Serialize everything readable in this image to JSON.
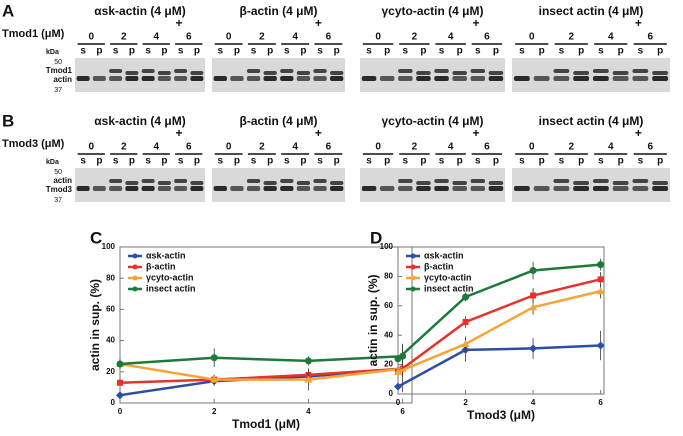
{
  "gel_panels": [
    {
      "label": "A",
      "factor": "Tmod1 (μM)",
      "kda": "kDa",
      "markers": [
        "50",
        "37"
      ],
      "band_labels": [
        "Tmod1",
        "actin"
      ],
      "gels": [
        "αsk-actin (4 μM)",
        "β-actin (4 μM)",
        "γcyto-actin (4 μM)",
        "insect actin (4 μM)"
      ]
    },
    {
      "label": "B",
      "factor": "Tmod3 (μM)",
      "kda": "kDa",
      "markers": [
        "50",
        "37"
      ],
      "band_labels": [
        "actin",
        "Tmod3"
      ],
      "gels": [
        "αsk-actin (4 μM)",
        "β-actin (4 μM)",
        "γcyto-actin (4 μM)",
        "insect actin (4 μM)"
      ]
    }
  ],
  "plus": "+",
  "concentrations": [
    0,
    2,
    4,
    6
  ],
  "lanes": [
    "s",
    "p"
  ],
  "chart_data": [
    {
      "type": "line",
      "panel": "C",
      "x_label": "Tmod1 (μM)",
      "y_label": "actin in sup. (%)",
      "x": [
        0,
        2,
        4,
        6
      ],
      "xlim": [
        0,
        6.2
      ],
      "xticks": [
        0,
        2,
        4,
        6
      ],
      "ylim": [
        0,
        100
      ],
      "yticks": [
        0,
        20,
        40,
        60,
        80,
        100
      ],
      "legend": "upper-left",
      "series": [
        {
          "name": "αsk-actin",
          "color": "#2c4fa3",
          "values": [
            5,
            14,
            17,
            22
          ],
          "errors": [
            2,
            3,
            3,
            5
          ]
        },
        {
          "name": "β-actin",
          "color": "#e8312b",
          "values": [
            13,
            15,
            18,
            22
          ],
          "errors": [
            2,
            3,
            4,
            5
          ]
        },
        {
          "name": "γcyto-actin",
          "color": "#f6a43a",
          "values": [
            25,
            15,
            15,
            22
          ],
          "errors": [
            3,
            3,
            7,
            15
          ]
        },
        {
          "name": "insect actin",
          "color": "#1e7a3a",
          "values": [
            25,
            29,
            27,
            30
          ],
          "errors": [
            3,
            6,
            3,
            8
          ]
        }
      ]
    },
    {
      "type": "line",
      "panel": "D",
      "x_label": "Tmod3 (μM)",
      "y_label": "actin in sup. (%)",
      "x": [
        0,
        2,
        4,
        6
      ],
      "xlim": [
        0,
        6.1
      ],
      "xticks": [
        0,
        2,
        4,
        6
      ],
      "ylim": [
        0,
        100
      ],
      "yticks": [
        0,
        20,
        40,
        60,
        80,
        100
      ],
      "legend": "upper-left",
      "series": [
        {
          "name": "αsk-actin",
          "color": "#2c4fa3",
          "values": [
            5,
            30,
            31,
            33
          ],
          "errors": [
            2,
            8,
            7,
            10
          ]
        },
        {
          "name": "β-actin",
          "color": "#e8312b",
          "values": [
            15,
            49,
            67,
            78
          ],
          "errors": [
            2,
            4,
            5,
            5
          ]
        },
        {
          "name": "γcyto-actin",
          "color": "#f6a43a",
          "values": [
            15,
            34,
            59,
            70
          ],
          "errors": [
            2,
            5,
            5,
            5
          ]
        },
        {
          "name": "insect actin",
          "color": "#1e7a3a",
          "values": [
            24,
            66,
            84,
            88
          ],
          "errors": [
            2,
            3,
            6,
            4
          ]
        }
      ]
    }
  ]
}
